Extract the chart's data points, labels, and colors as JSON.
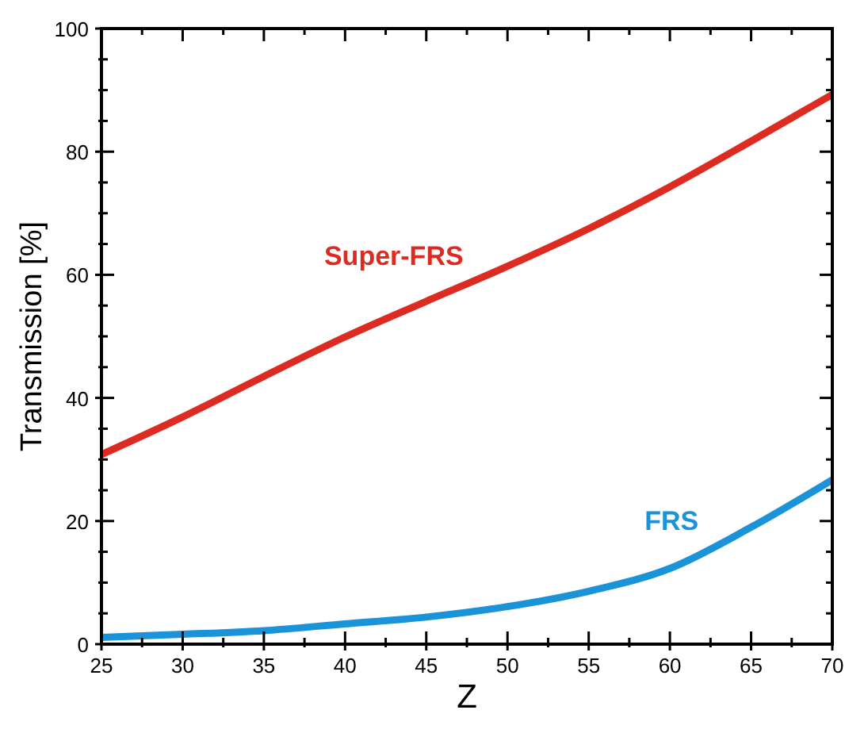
{
  "chart_data": {
    "type": "line",
    "xlabel": "Z",
    "ylabel": "Transmission [%]",
    "x": [
      25,
      30,
      35,
      40,
      45,
      50,
      55,
      60,
      65,
      70
    ],
    "series": [
      {
        "name": "Super-FRS",
        "color": "#dd2b22",
        "values": [
          30.8,
          36.9,
          43.5,
          49.9,
          55.7,
          61.4,
          67.5,
          74.3,
          81.7,
          89.3
        ]
      },
      {
        "name": "FRS",
        "color": "#1b93d9",
        "values": [
          1.1,
          1.6,
          2.2,
          3.3,
          4.4,
          6.1,
          8.6,
          12.3,
          19,
          26.7
        ]
      }
    ],
    "xlim": [
      25,
      70
    ],
    "ylim": [
      0,
      100
    ],
    "xticks": [
      25,
      {
        "value": 27.5,
        "label": null
      },
      30,
      {
        "value": 32.5,
        "label": null
      },
      35,
      {
        "value": 37.5,
        "label": null
      },
      40,
      {
        "value": 42.5,
        "label": null
      },
      45,
      {
        "value": 47.5,
        "label": null
      },
      50,
      {
        "value": 52.5,
        "label": null
      },
      55,
      {
        "value": 57.5,
        "label": null
      },
      60,
      {
        "value": 62.5,
        "label": null
      },
      65,
      {
        "value": 67.5,
        "label": null
      },
      70
    ],
    "yticks": [
      0,
      {
        "value": 5,
        "label": null
      },
      {
        "value": 10,
        "label": null
      },
      {
        "value": 15,
        "label": null
      },
      20,
      {
        "value": 25,
        "label": null
      },
      {
        "value": 30,
        "label": null
      },
      {
        "value": 35,
        "label": null
      },
      40,
      {
        "value": 45,
        "label": null
      },
      {
        "value": 50,
        "label": null
      },
      {
        "value": 55,
        "label": null
      },
      60,
      {
        "value": 65,
        "label": null
      },
      {
        "value": 70,
        "label": null
      },
      {
        "value": 75,
        "label": null
      },
      80,
      {
        "value": 85,
        "label": null
      },
      {
        "value": 90,
        "label": null
      },
      {
        "value": 95,
        "label": null
      },
      100
    ],
    "grid": false,
    "legend": false,
    "marker": "none",
    "line_style": "solid"
  }
}
